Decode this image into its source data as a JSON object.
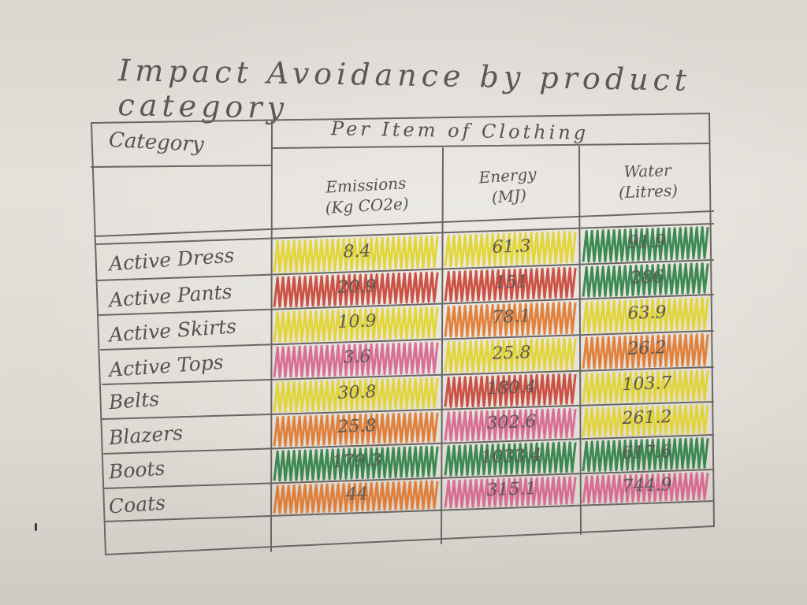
{
  "title": "Impact Avoidance by product category",
  "table": {
    "category_header": "Category",
    "group_header": "Per Item of Clothing",
    "columns": [
      "Emissions\n(Kg CO2e)",
      "Energy\n(MJ)",
      "Water\n(Litres)"
    ],
    "rows": [
      {
        "name": "Active Dress",
        "values": [
          "8.4",
          "61.3",
          "91.9"
        ],
        "colors": [
          "#e2d21c",
          "#e2d21c",
          "#1f7a3a"
        ]
      },
      {
        "name": "Active Pants",
        "values": [
          "20.9",
          "151",
          "286"
        ],
        "colors": [
          "#c7372a",
          "#c7372a",
          "#1f7a3a"
        ]
      },
      {
        "name": "Active Skirts",
        "values": [
          "10.9",
          "78.1",
          "63.9"
        ],
        "colors": [
          "#e2d21c",
          "#e07020",
          "#e2d21c"
        ]
      },
      {
        "name": "Active Tops",
        "values": [
          "3.6",
          "25.8",
          "26.2"
        ],
        "colors": [
          "#d65a8a",
          "#e2d21c",
          "#e07020"
        ]
      },
      {
        "name": "Belts",
        "values": [
          "30.8",
          "180.4",
          "103.7"
        ],
        "colors": [
          "#e2d21c",
          "#c7372a",
          "#e2d21c"
        ]
      },
      {
        "name": "Blazers",
        "values": [
          "25.8",
          "302.6",
          "261.2"
        ],
        "colors": [
          "#e07020",
          "#d65a8a",
          "#e2d21c"
        ]
      },
      {
        "name": "Boots",
        "values": [
          "179.3",
          "1033.4",
          "617.6"
        ],
        "colors": [
          "#1f7a3a",
          "#1f7a3a",
          "#1f7a3a"
        ]
      },
      {
        "name": "Coats",
        "values": [
          "44",
          "315.1",
          "744.9"
        ],
        "colors": [
          "#e07020",
          "#d65a8a",
          "#d65a8a"
        ]
      }
    ]
  }
}
